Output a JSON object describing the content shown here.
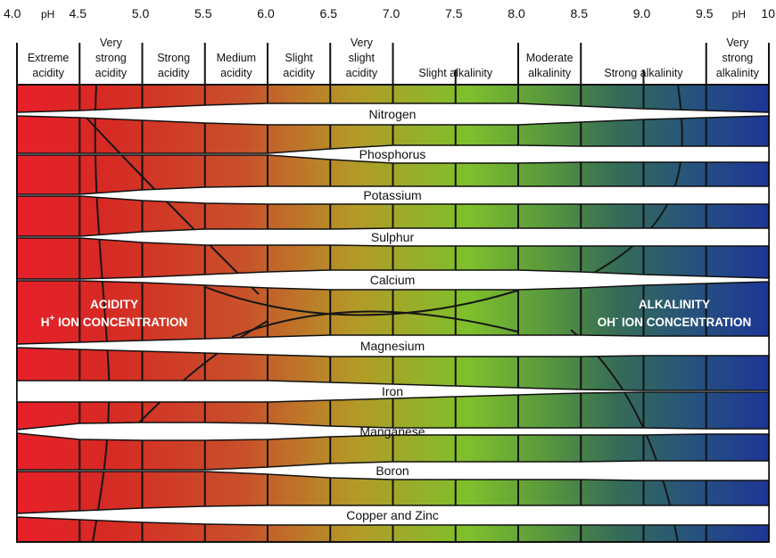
{
  "ph_axis": {
    "unit_label": "pH",
    "ticks": [
      "4.0",
      "4.5",
      "5.0",
      "5.5",
      "6.0",
      "6.5",
      "7.0",
      "7.5",
      "8.0",
      "8.5",
      "9.0",
      "9.5",
      "10"
    ],
    "range": [
      4.0,
      10.0
    ]
  },
  "bands": [
    {
      "lines": [
        "Extreme",
        "acidity"
      ],
      "from": 4.0,
      "to": 4.5
    },
    {
      "lines": [
        "Very",
        "strong",
        "acidity"
      ],
      "from": 4.5,
      "to": 5.0
    },
    {
      "lines": [
        "Strong",
        "acidity"
      ],
      "from": 5.0,
      "to": 5.5
    },
    {
      "lines": [
        "Medium",
        "acidity"
      ],
      "from": 5.5,
      "to": 6.0
    },
    {
      "lines": [
        "Slight",
        "acidity"
      ],
      "from": 6.0,
      "to": 6.5
    },
    {
      "lines": [
        "Very",
        "slight",
        "acidity"
      ],
      "from": 6.5,
      "to": 7.0
    },
    {
      "lines": [
        "Slight alkalinity"
      ],
      "from": 7.0,
      "to": 8.0
    },
    {
      "lines": [
        "Moderate",
        "alkalinity"
      ],
      "from": 8.0,
      "to": 8.5
    },
    {
      "lines": [
        "Strong alkalinity"
      ],
      "from": 8.5,
      "to": 9.5
    },
    {
      "lines": [
        "Very",
        "strong",
        "alkalinity"
      ],
      "from": 9.5,
      "to": 10.0
    }
  ],
  "nutrients": [
    "Nitrogen",
    "Phosphorus",
    "Potassium",
    "Sulphur",
    "Calcium",
    "Magnesium",
    "Iron",
    "Manganese",
    "Boron",
    "Copper and Zinc"
  ],
  "acidity_label": {
    "title": "ACIDITY",
    "sub_prefix": "H",
    "sup": "+",
    "sub_rest": " ION CONCENTRATION"
  },
  "alkalinity_label": {
    "title": "ALKALINITY",
    "sub_prefix": "OH",
    "sup": "-",
    "sub_rest": " ION CONCENTRATION"
  },
  "gradient_colors": [
    "#e8202a",
    "#c8441f",
    "#d9842a",
    "#a6b62a",
    "#7bbf2a",
    "#5a9a3a",
    "#2e6a5e",
    "#254d88",
    "#1e3596"
  ]
}
